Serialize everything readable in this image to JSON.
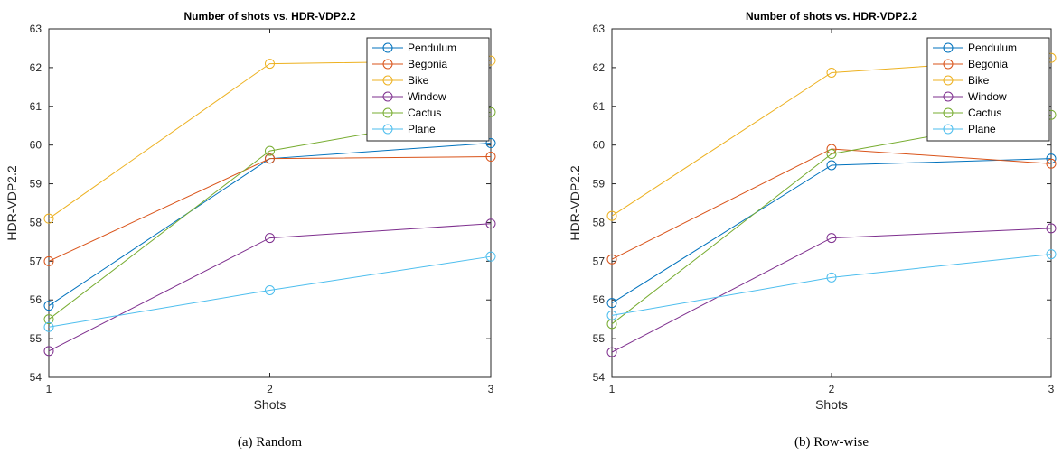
{
  "chart_data": [
    {
      "type": "line",
      "title": "Number of shots vs. HDR-VDP2.2",
      "xlabel": "Shots",
      "ylabel": "HDR-VDP2.2",
      "caption": "(a) Random",
      "x": [
        1,
        2,
        3
      ],
      "xlim": [
        1,
        3
      ],
      "ylim": [
        54,
        63
      ],
      "xticks": [
        "1",
        "2",
        "3"
      ],
      "yticks": [
        "54",
        "55",
        "56",
        "57",
        "58",
        "59",
        "60",
        "61",
        "62",
        "63"
      ],
      "legend_position": "top-right",
      "grid": false,
      "series": [
        {
          "name": "Pendulum",
          "color": "#0072BD",
          "values": [
            55.85,
            59.65,
            60.05
          ]
        },
        {
          "name": "Begonia",
          "color": "#D95319",
          "values": [
            57.0,
            59.65,
            59.7
          ]
        },
        {
          "name": "Bike",
          "color": "#EDB120",
          "values": [
            58.1,
            62.1,
            62.18
          ]
        },
        {
          "name": "Window",
          "color": "#7E2F8E",
          "values": [
            54.68,
            57.6,
            57.97
          ]
        },
        {
          "name": "Cactus",
          "color": "#77AC30",
          "values": [
            55.5,
            59.85,
            60.85
          ]
        },
        {
          "name": "Plane",
          "color": "#4DBEEE",
          "values": [
            55.3,
            56.25,
            57.12
          ]
        }
      ]
    },
    {
      "type": "line",
      "title": "Number of shots vs. HDR-VDP2.2",
      "xlabel": "Shots",
      "ylabel": "HDR-VDP2.2",
      "caption": "(b) Row-wise",
      "x": [
        1,
        2,
        3
      ],
      "xlim": [
        1,
        3
      ],
      "ylim": [
        54,
        63
      ],
      "xticks": [
        "1",
        "2",
        "3"
      ],
      "yticks": [
        "54",
        "55",
        "56",
        "57",
        "58",
        "59",
        "60",
        "61",
        "62",
        "63"
      ],
      "legend_position": "top-right",
      "grid": false,
      "series": [
        {
          "name": "Pendulum",
          "color": "#0072BD",
          "values": [
            55.92,
            59.48,
            59.65
          ]
        },
        {
          "name": "Begonia",
          "color": "#D95319",
          "values": [
            57.05,
            59.9,
            59.52
          ]
        },
        {
          "name": "Bike",
          "color": "#EDB120",
          "values": [
            58.17,
            61.87,
            62.25
          ]
        },
        {
          "name": "Window",
          "color": "#7E2F8E",
          "values": [
            54.65,
            57.6,
            57.85
          ]
        },
        {
          "name": "Cactus",
          "color": "#77AC30",
          "values": [
            55.38,
            59.77,
            60.78
          ]
        },
        {
          "name": "Plane",
          "color": "#4DBEEE",
          "values": [
            55.6,
            56.58,
            57.18
          ]
        }
      ]
    }
  ]
}
